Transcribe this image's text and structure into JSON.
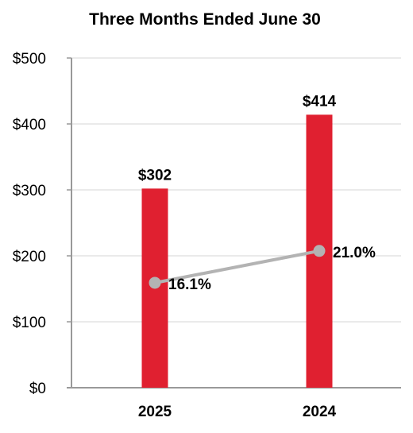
{
  "chart_data": {
    "type": "bar",
    "title": "Three Months Ended June 30",
    "xlabel": "",
    "ylabel": "",
    "categories": [
      "2025",
      "2024"
    ],
    "ylim": [
      0,
      500
    ],
    "yticks": [
      0,
      100,
      200,
      300,
      400,
      500
    ],
    "ytick_labels": [
      "$0",
      "$100",
      "$200",
      "$300",
      "$400",
      "$500"
    ],
    "grid": true,
    "legend": "none",
    "series": [
      {
        "type": "bar",
        "values": [
          302,
          414
        ],
        "labels": [
          "$302",
          "$414"
        ],
        "color": "#e02030"
      },
      {
        "type": "line",
        "values": [
          16.1,
          21.0
        ],
        "labels": [
          "16.1%",
          "21.0%"
        ],
        "color": "#b3b3b3"
      }
    ]
  }
}
